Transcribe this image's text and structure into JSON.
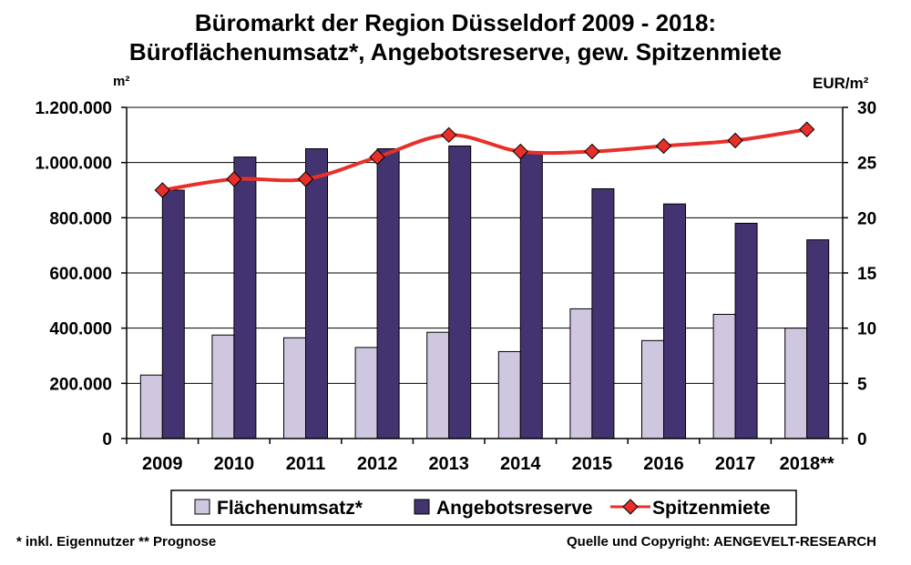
{
  "chart_data": {
    "type": "bar",
    "title_line1": "Büromarkt der Region Düsseldorf 2009 - 2018:",
    "title_line2": "Büroflächenumsatz*, Angebotsreserve, gew. Spitzenmiete",
    "ylabel_left": "m²",
    "ylabel_right": "EUR/m²",
    "categories": [
      "2009",
      "2010",
      "2011",
      "2012",
      "2013",
      "2014",
      "2015",
      "2016",
      "2017",
      "2018**"
    ],
    "ylim_left": [
      0,
      1200000
    ],
    "ylim_right": [
      0,
      30
    ],
    "yticks_left": [
      {
        "value": 0,
        "label": "0"
      },
      {
        "value": 200000,
        "label": "200.000"
      },
      {
        "value": 400000,
        "label": "400.000"
      },
      {
        "value": 600000,
        "label": "600.000"
      },
      {
        "value": 800000,
        "label": "800.000"
      },
      {
        "value": 1000000,
        "label": "1.000.000"
      },
      {
        "value": 1200000,
        "label": "1.200.000"
      }
    ],
    "yticks_right": [
      {
        "value": 0,
        "label": "0"
      },
      {
        "value": 5,
        "label": "5"
      },
      {
        "value": 10,
        "label": "10"
      },
      {
        "value": 15,
        "label": "15"
      },
      {
        "value": 20,
        "label": "20"
      },
      {
        "value": 25,
        "label": "25"
      },
      {
        "value": 30,
        "label": "30"
      }
    ],
    "series": [
      {
        "name": "Flächenumsatz*",
        "kind": "bar",
        "axis": "left",
        "color": "#cfc6e0",
        "values": [
          230000,
          375000,
          365000,
          330000,
          385000,
          315000,
          470000,
          355000,
          450000,
          400000
        ]
      },
      {
        "name": "Angebotsreserve",
        "kind": "bar",
        "axis": "left",
        "color": "#443371",
        "values": [
          900000,
          1020000,
          1050000,
          1050000,
          1060000,
          1040000,
          905000,
          850000,
          780000,
          720000
        ]
      },
      {
        "name": "Spitzenmiete",
        "kind": "line",
        "axis": "right",
        "color": "#e8302a",
        "marker_color": "#e8302a",
        "values": [
          22.5,
          23.5,
          23.5,
          25.5,
          27.5,
          26,
          26,
          26.5,
          27,
          28
        ]
      }
    ],
    "grid": true,
    "legend_position": "bottom",
    "footnote_left": "* inkl. Eigennutzer ** Prognose",
    "footnote_right": "Quelle und Copyright: AENGEVELT-RESEARCH"
  }
}
